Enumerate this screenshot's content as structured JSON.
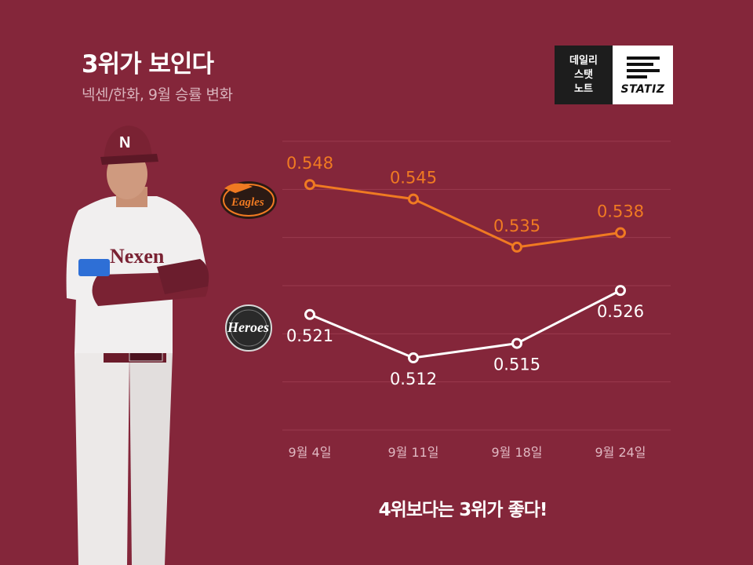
{
  "header": {
    "title": "3위가 보인다",
    "subtitle": "넥센/한화, 9월 승률 변화"
  },
  "brand": {
    "line1": "데일리",
    "line2": "스탯",
    "line3": "노트",
    "wordmark": "STATIZ"
  },
  "footnote": "4위보다는 3위가 좋다!",
  "colors": {
    "background": "#84263a",
    "eagles": "#f07a22",
    "heroes": "#ffffff",
    "tick_text": "#e0b8c2"
  },
  "chart_data": {
    "type": "line",
    "categories": [
      "9월 4일",
      "9월 11일",
      "9월 18일",
      "9월 24일"
    ],
    "series": [
      {
        "name": "Eagles",
        "values": [
          0.548,
          0.545,
          0.535,
          0.538
        ]
      },
      {
        "name": "Heroes",
        "values": [
          0.521,
          0.512,
          0.515,
          0.526
        ]
      }
    ],
    "ylim": [
      0.497,
      0.557
    ],
    "grid": true
  }
}
